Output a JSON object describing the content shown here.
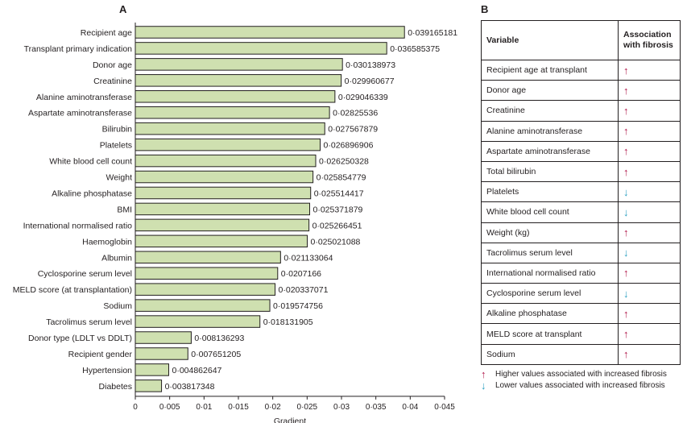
{
  "panel_a": "A",
  "panel_b": "B",
  "chart_data": {
    "type": "bar",
    "orientation": "horizontal",
    "categories": [
      "Recipient age",
      "Transplant primary indication",
      "Donor age",
      "Creatinine",
      "Alanine aminotransferase",
      "Aspartate aminotransferase",
      "Bilirubin",
      "Platelets",
      "White blood cell count",
      "Weight",
      "Alkaline phosphatase",
      "BMI",
      "International normalised ratio",
      "Haemoglobin",
      "Albumin",
      "Cyclosporine serum level",
      "MELD score (at transplantation)",
      "Sodium",
      "Tacrolimus serum level",
      "Donor type (LDLT vs DDLT)",
      "Recipient gender",
      "Hypertension",
      "Diabetes"
    ],
    "values": [
      0.039165181,
      0.036585375,
      0.030138973,
      0.029960677,
      0.029046339,
      0.02825536,
      0.027567879,
      0.026896906,
      0.026250328,
      0.025854779,
      0.025514417,
      0.025371879,
      0.025266451,
      0.025021088,
      0.021133064,
      0.0207166,
      0.020337071,
      0.019574756,
      0.018131905,
      0.008136293,
      0.007651205,
      0.004862647,
      0.003817348
    ],
    "value_labels": [
      "0·039165181",
      "0·036585375",
      "0·030138973",
      "0·029960677",
      "0·029046339",
      "0·02825536",
      "0·027567879",
      "0·026896906",
      "0·026250328",
      "0·025854779",
      "0·025514417",
      "0·025371879",
      "0·025266451",
      "0·025021088",
      "0·021133064",
      "0·0207166",
      "0·020337071",
      "0·019574756",
      "0·018131905",
      "0·008136293",
      "0·007651205",
      "0·004862647",
      "0·003817348"
    ],
    "xlabel": "Gradient",
    "xlim": [
      0,
      0.045
    ],
    "ticks": [
      0,
      0.005,
      0.01,
      0.015,
      0.02,
      0.025,
      0.03,
      0.035,
      0.04,
      0.045
    ],
    "tick_labels": [
      "0",
      "0·005",
      "0·01",
      "0·015",
      "0·02",
      "0·025",
      "0·03",
      "0·035",
      "0·04",
      "0·045"
    ],
    "bar_color": "#cfe0b0",
    "bar_edge": "#231f20"
  },
  "table": {
    "headers": [
      "Variable",
      "Association with fibrosis"
    ],
    "rows": [
      {
        "variable": "Recipient age at transplant",
        "direction": "up",
        "symbol": "↑"
      },
      {
        "variable": "Donor age",
        "direction": "up",
        "symbol": "↑"
      },
      {
        "variable": "Creatinine",
        "direction": "up",
        "symbol": "↑"
      },
      {
        "variable": "Alanine aminotransferase",
        "direction": "up",
        "symbol": "↑"
      },
      {
        "variable": "Aspartate aminotransferase",
        "direction": "up",
        "symbol": "↑"
      },
      {
        "variable": "Total bilirubin",
        "direction": "up",
        "symbol": "↑"
      },
      {
        "variable": "Platelets",
        "direction": "down",
        "symbol": "↓"
      },
      {
        "variable": "White blood cell count",
        "direction": "down",
        "symbol": "↓"
      },
      {
        "variable": "Weight (kg)",
        "direction": "up",
        "symbol": "↑"
      },
      {
        "variable": "Tacrolimus serum level",
        "direction": "down",
        "symbol": "↓"
      },
      {
        "variable": "International normalised ratio",
        "direction": "up",
        "symbol": "↑"
      },
      {
        "variable": "Cyclosporine serum level",
        "direction": "down",
        "symbol": "↓"
      },
      {
        "variable": "Alkaline phosphatase",
        "direction": "up",
        "symbol": "↑"
      },
      {
        "variable": "MELD score at transplant",
        "direction": "up",
        "symbol": "↑"
      },
      {
        "variable": "Sodium",
        "direction": "up",
        "symbol": "↑"
      }
    ]
  },
  "legend": {
    "up_symbol": "↑",
    "up_text": "Higher values associated with increased fibrosis",
    "down_symbol": "↓",
    "down_text": "Lower values associated with increased fibrosis"
  },
  "colors": {
    "up": "#b0174a",
    "down": "#2a9fc0"
  }
}
